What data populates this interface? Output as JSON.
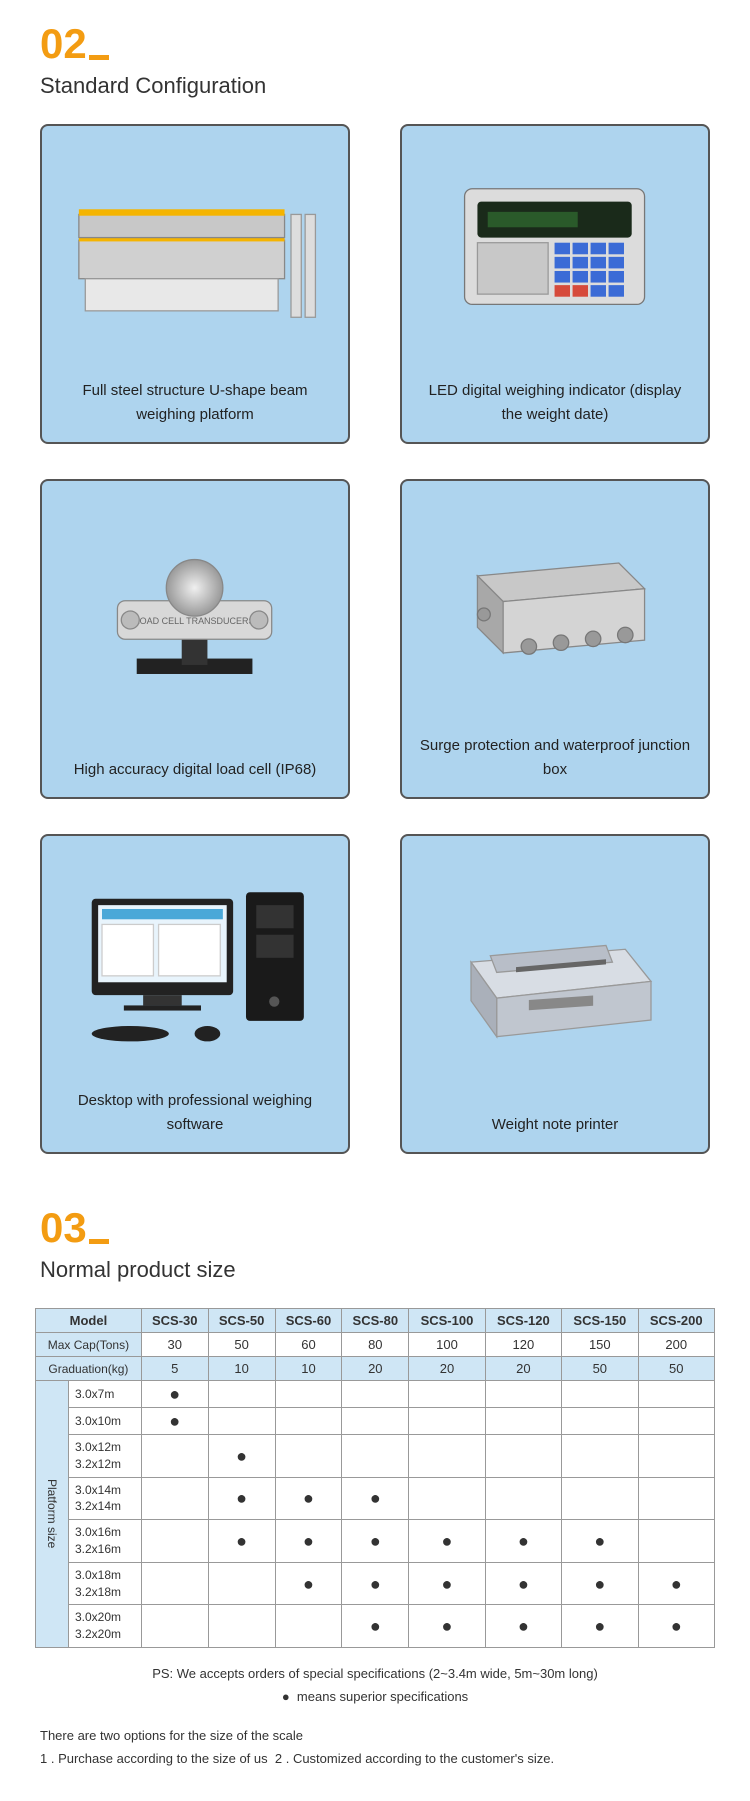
{
  "section02": {
    "num": "02",
    "title": "Standard Configuration",
    "cards": [
      {
        "label": "Full steel structure U-shape beam weighing platform",
        "icon": "platform"
      },
      {
        "label": "LED digital weighing indicator (display the weight date)",
        "icon": "indicator"
      },
      {
        "label": "High accuracy digital load cell (IP68)",
        "icon": "loadcell"
      },
      {
        "label": "Surge protection and waterproof junction box",
        "icon": "junction"
      },
      {
        "label": "Desktop with professional weighing software",
        "icon": "desktop"
      },
      {
        "label": "Weight note printer",
        "icon": "printer"
      }
    ]
  },
  "section03": {
    "num": "03",
    "title": "Normal product size",
    "table": {
      "header_model": "Model",
      "models": [
        "SCS-30",
        "SCS-50",
        "SCS-60",
        "SCS-80",
        "SCS-100",
        "SCS-120",
        "SCS-150",
        "SCS-200"
      ],
      "maxcap_label": "Max Cap(Tons)",
      "maxcap": [
        "30",
        "50",
        "60",
        "80",
        "100",
        "120",
        "150",
        "200"
      ],
      "grad_label": "Graduation(kg)",
      "grad": [
        "5",
        "10",
        "10",
        "20",
        "20",
        "20",
        "50",
        "50"
      ],
      "platform_label": "Platform size",
      "rows": [
        {
          "size": "3.0x7m",
          "dots": [
            true,
            false,
            false,
            false,
            false,
            false,
            false,
            false
          ]
        },
        {
          "size": "3.0x10m",
          "dots": [
            true,
            false,
            false,
            false,
            false,
            false,
            false,
            false
          ]
        },
        {
          "size": "3.0x12m\n3.2x12m",
          "dots": [
            false,
            true,
            false,
            false,
            false,
            false,
            false,
            false
          ]
        },
        {
          "size": "3.0x14m\n3.2x14m",
          "dots": [
            false,
            true,
            true,
            true,
            false,
            false,
            false,
            false
          ]
        },
        {
          "size": "3.0x16m\n3.2x16m",
          "dots": [
            false,
            true,
            true,
            true,
            true,
            true,
            true,
            false
          ]
        },
        {
          "size": "3.0x18m\n3.2x18m",
          "dots": [
            false,
            false,
            true,
            true,
            true,
            true,
            true,
            true
          ]
        },
        {
          "size": "3.0x20m\n3.2x20m",
          "dots": [
            false,
            false,
            false,
            true,
            true,
            true,
            true,
            true
          ]
        }
      ]
    },
    "ps": "PS: We accepts orders of special specifications (2~3.4m wide, 5m~30m long)",
    "legend_symbol": "●",
    "legend_text": "means superior specifications",
    "notes_intro": "There are two options for the size of the scale",
    "note1": "1 . Purchase according to the size of us",
    "note2": "2 .  Customized according to the customer's size."
  },
  "colors": {
    "accent": "#f39c12",
    "card_bg": "#aed4ee",
    "card_border": "#555555",
    "table_hdr": "#cfe6f5",
    "dot": "#000000"
  }
}
